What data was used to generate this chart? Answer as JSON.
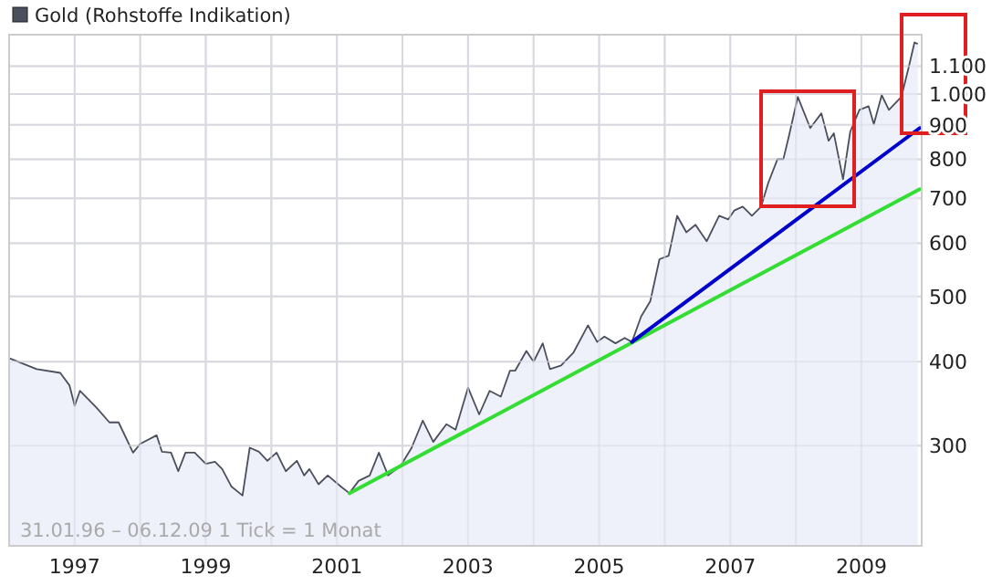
{
  "chart_data": {
    "type": "area",
    "log": "y",
    "grid": true,
    "legend": "top left",
    "annotations": [
      "31.01.96 – 06.12.09   1 Tick = 1 Monat"
    ],
    "xlim": [
      1996.0,
      2009.92
    ],
    "ylim": [
      213,
      1225
    ],
    "xticks": [
      1997,
      {
        "value": 1998,
        "label": null
      },
      1999,
      {
        "value": 2000,
        "label": null
      },
      2001,
      {
        "value": 2002,
        "label": null
      },
      2003,
      {
        "value": 2004,
        "label": null
      },
      2005,
      {
        "value": 2006,
        "label": null
      },
      2007,
      {
        "value": 2008,
        "label": null
      },
      2009
    ],
    "yticks": [
      300,
      400,
      500,
      600,
      700,
      800,
      900,
      {
        "value": 1000,
        "label": "1.000"
      },
      {
        "value": 1100,
        "label": "1.100"
      }
    ],
    "series": [
      {
        "name": "Gold (Rohstoffe Indikation)",
        "color": "#4b4f5c",
        "x": [
          1996.0,
          1996.42,
          1996.78,
          1996.92,
          1997.0,
          1997.08,
          1997.33,
          1997.53,
          1997.67,
          1997.89,
          1998.0,
          1998.25,
          1998.33,
          1998.47,
          1998.58,
          1998.69,
          1998.83,
          1999.0,
          1999.14,
          1999.25,
          1999.39,
          1999.56,
          1999.67,
          1999.81,
          1999.94,
          2000.08,
          2000.22,
          2000.39,
          2000.5,
          2000.58,
          2000.72,
          2000.86,
          2001.06,
          2001.19,
          2001.33,
          2001.5,
          2001.64,
          2001.78,
          2001.97,
          2002.14,
          2002.31,
          2002.47,
          2002.67,
          2002.81,
          2003.0,
          2003.17,
          2003.33,
          2003.5,
          2003.64,
          2003.72,
          2003.89,
          2004.0,
          2004.14,
          2004.25,
          2004.42,
          2004.61,
          2004.83,
          2004.97,
          2005.08,
          2005.25,
          2005.39,
          2005.5,
          2005.64,
          2005.78,
          2005.92,
          2006.06,
          2006.19,
          2006.33,
          2006.47,
          2006.64,
          2006.83,
          2006.97,
          2007.06,
          2007.19,
          2007.33,
          2007.47,
          2007.58,
          2007.72,
          2007.81,
          2007.89,
          2008.03,
          2008.22,
          2008.39,
          2008.5,
          2008.58,
          2008.72,
          2008.83,
          2008.97,
          2009.11,
          2009.19,
          2009.31,
          2009.42,
          2009.61,
          2009.72,
          2009.81,
          2009.86
        ],
        "values": [
          405,
          390,
          385,
          369,
          344,
          362,
          342,
          325,
          325,
          293,
          302,
          311,
          294,
          293,
          275,
          293,
          293,
          282,
          284,
          277,
          261,
          253,
          298,
          294,
          285,
          293,
          275,
          285,
          271,
          277,
          263,
          271,
          261,
          255,
          266,
          271,
          293,
          271,
          280,
          298,
          327,
          304,
          323,
          317,
          366,
          334,
          362,
          355,
          388,
          388,
          415,
          400,
          426,
          390,
          395,
          413,
          453,
          428,
          436,
          426,
          434,
          428,
          467,
          492,
          568,
          575,
          659,
          623,
          639,
          604,
          659,
          651,
          671,
          680,
          659,
          680,
          738,
          800,
          800,
          862,
          990,
          890,
          936,
          852,
          874,
          747,
          879,
          947,
          959,
          902,
          996,
          947,
          990,
          1094,
          1193,
          1187
        ]
      },
      {
        "type": "line",
        "color": "#33dd33",
        "x": [
          2001.19,
          2009.89
        ],
        "values": [
          255,
          722
        ]
      },
      {
        "type": "line",
        "color": "#0000cc",
        "x": [
          2005.5,
          2009.89
        ],
        "values": [
          428,
          890
        ]
      }
    ]
  }
}
